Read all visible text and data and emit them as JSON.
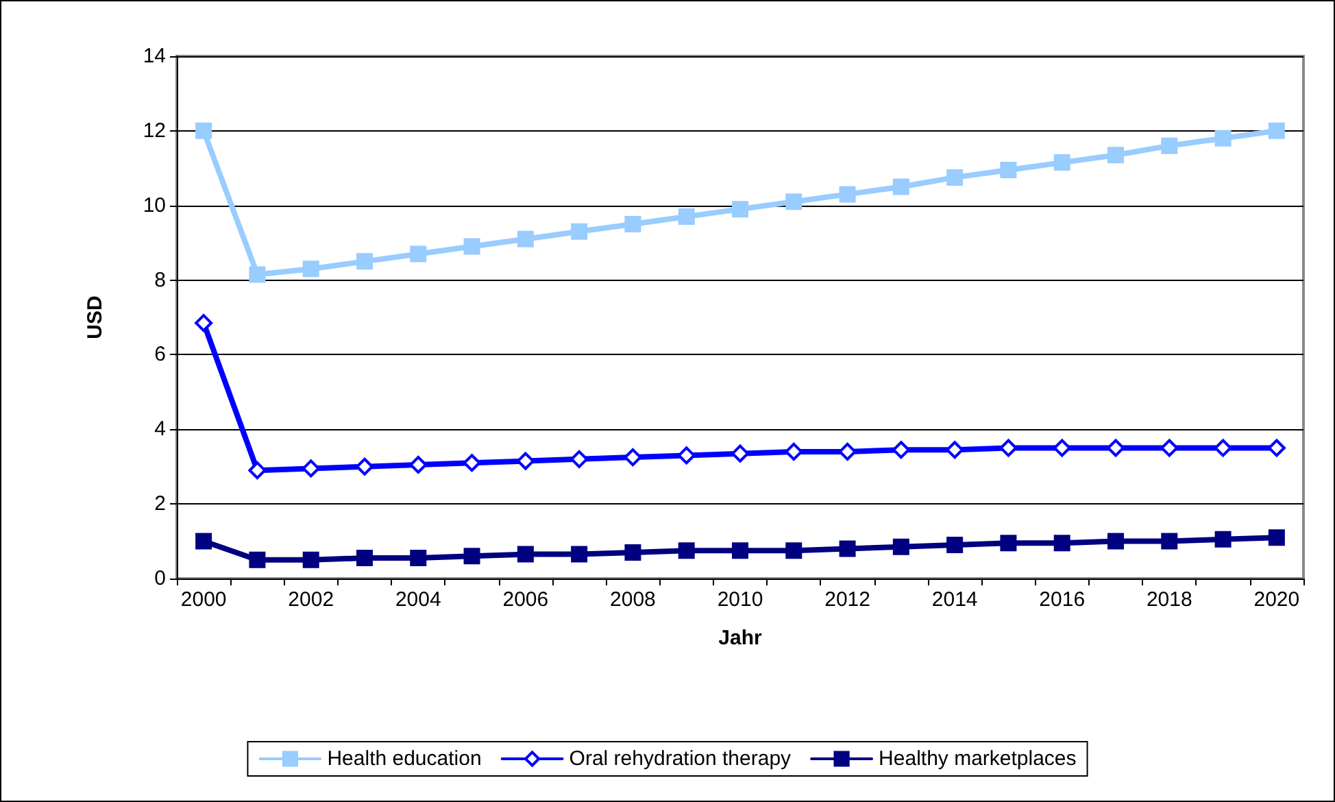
{
  "chart_data": {
    "type": "line",
    "xlabel": "Jahr",
    "ylabel": "USD",
    "categories": [
      "2000",
      null,
      "2002",
      null,
      "2004",
      null,
      "2006",
      null,
      "2008",
      null,
      "2010",
      null,
      "2012",
      null,
      "2014",
      null,
      "2016",
      null,
      "2018",
      null,
      "2020"
    ],
    "series": [
      {
        "name": "Health education",
        "color": "#99ccff",
        "marker": "square",
        "values": [
          12,
          8.15,
          8.3,
          8.5,
          8.7,
          8.9,
          9.1,
          9.3,
          9.5,
          9.7,
          9.9,
          10.1,
          10.3,
          10.5,
          10.75,
          10.95,
          11.15,
          11.35,
          11.6,
          11.8,
          12.0
        ]
      },
      {
        "name": "Oral rehydration therapy",
        "color": "#0000ff",
        "marker": "diamond",
        "values": [
          6.85,
          2.9,
          2.95,
          3.0,
          3.05,
          3.1,
          3.15,
          3.2,
          3.25,
          3.3,
          3.35,
          3.4,
          3.4,
          3.45,
          3.45,
          3.5,
          3.5,
          3.5,
          3.5,
          3.5,
          3.5
        ]
      },
      {
        "name": "Healthy marketplaces",
        "color": "#000080",
        "marker": "square",
        "values": [
          1.0,
          0.5,
          0.5,
          0.55,
          0.55,
          0.6,
          0.65,
          0.65,
          0.7,
          0.75,
          0.75,
          0.75,
          0.8,
          0.85,
          0.9,
          0.95,
          0.95,
          1.0,
          1.0,
          1.05,
          1.1
        ]
      }
    ],
    "ylim": [
      0,
      14
    ],
    "yticks": [
      0,
      2,
      4,
      6,
      8,
      10,
      12,
      14
    ],
    "grid": "y",
    "legend": "bottom",
    "line_style": "solid"
  }
}
